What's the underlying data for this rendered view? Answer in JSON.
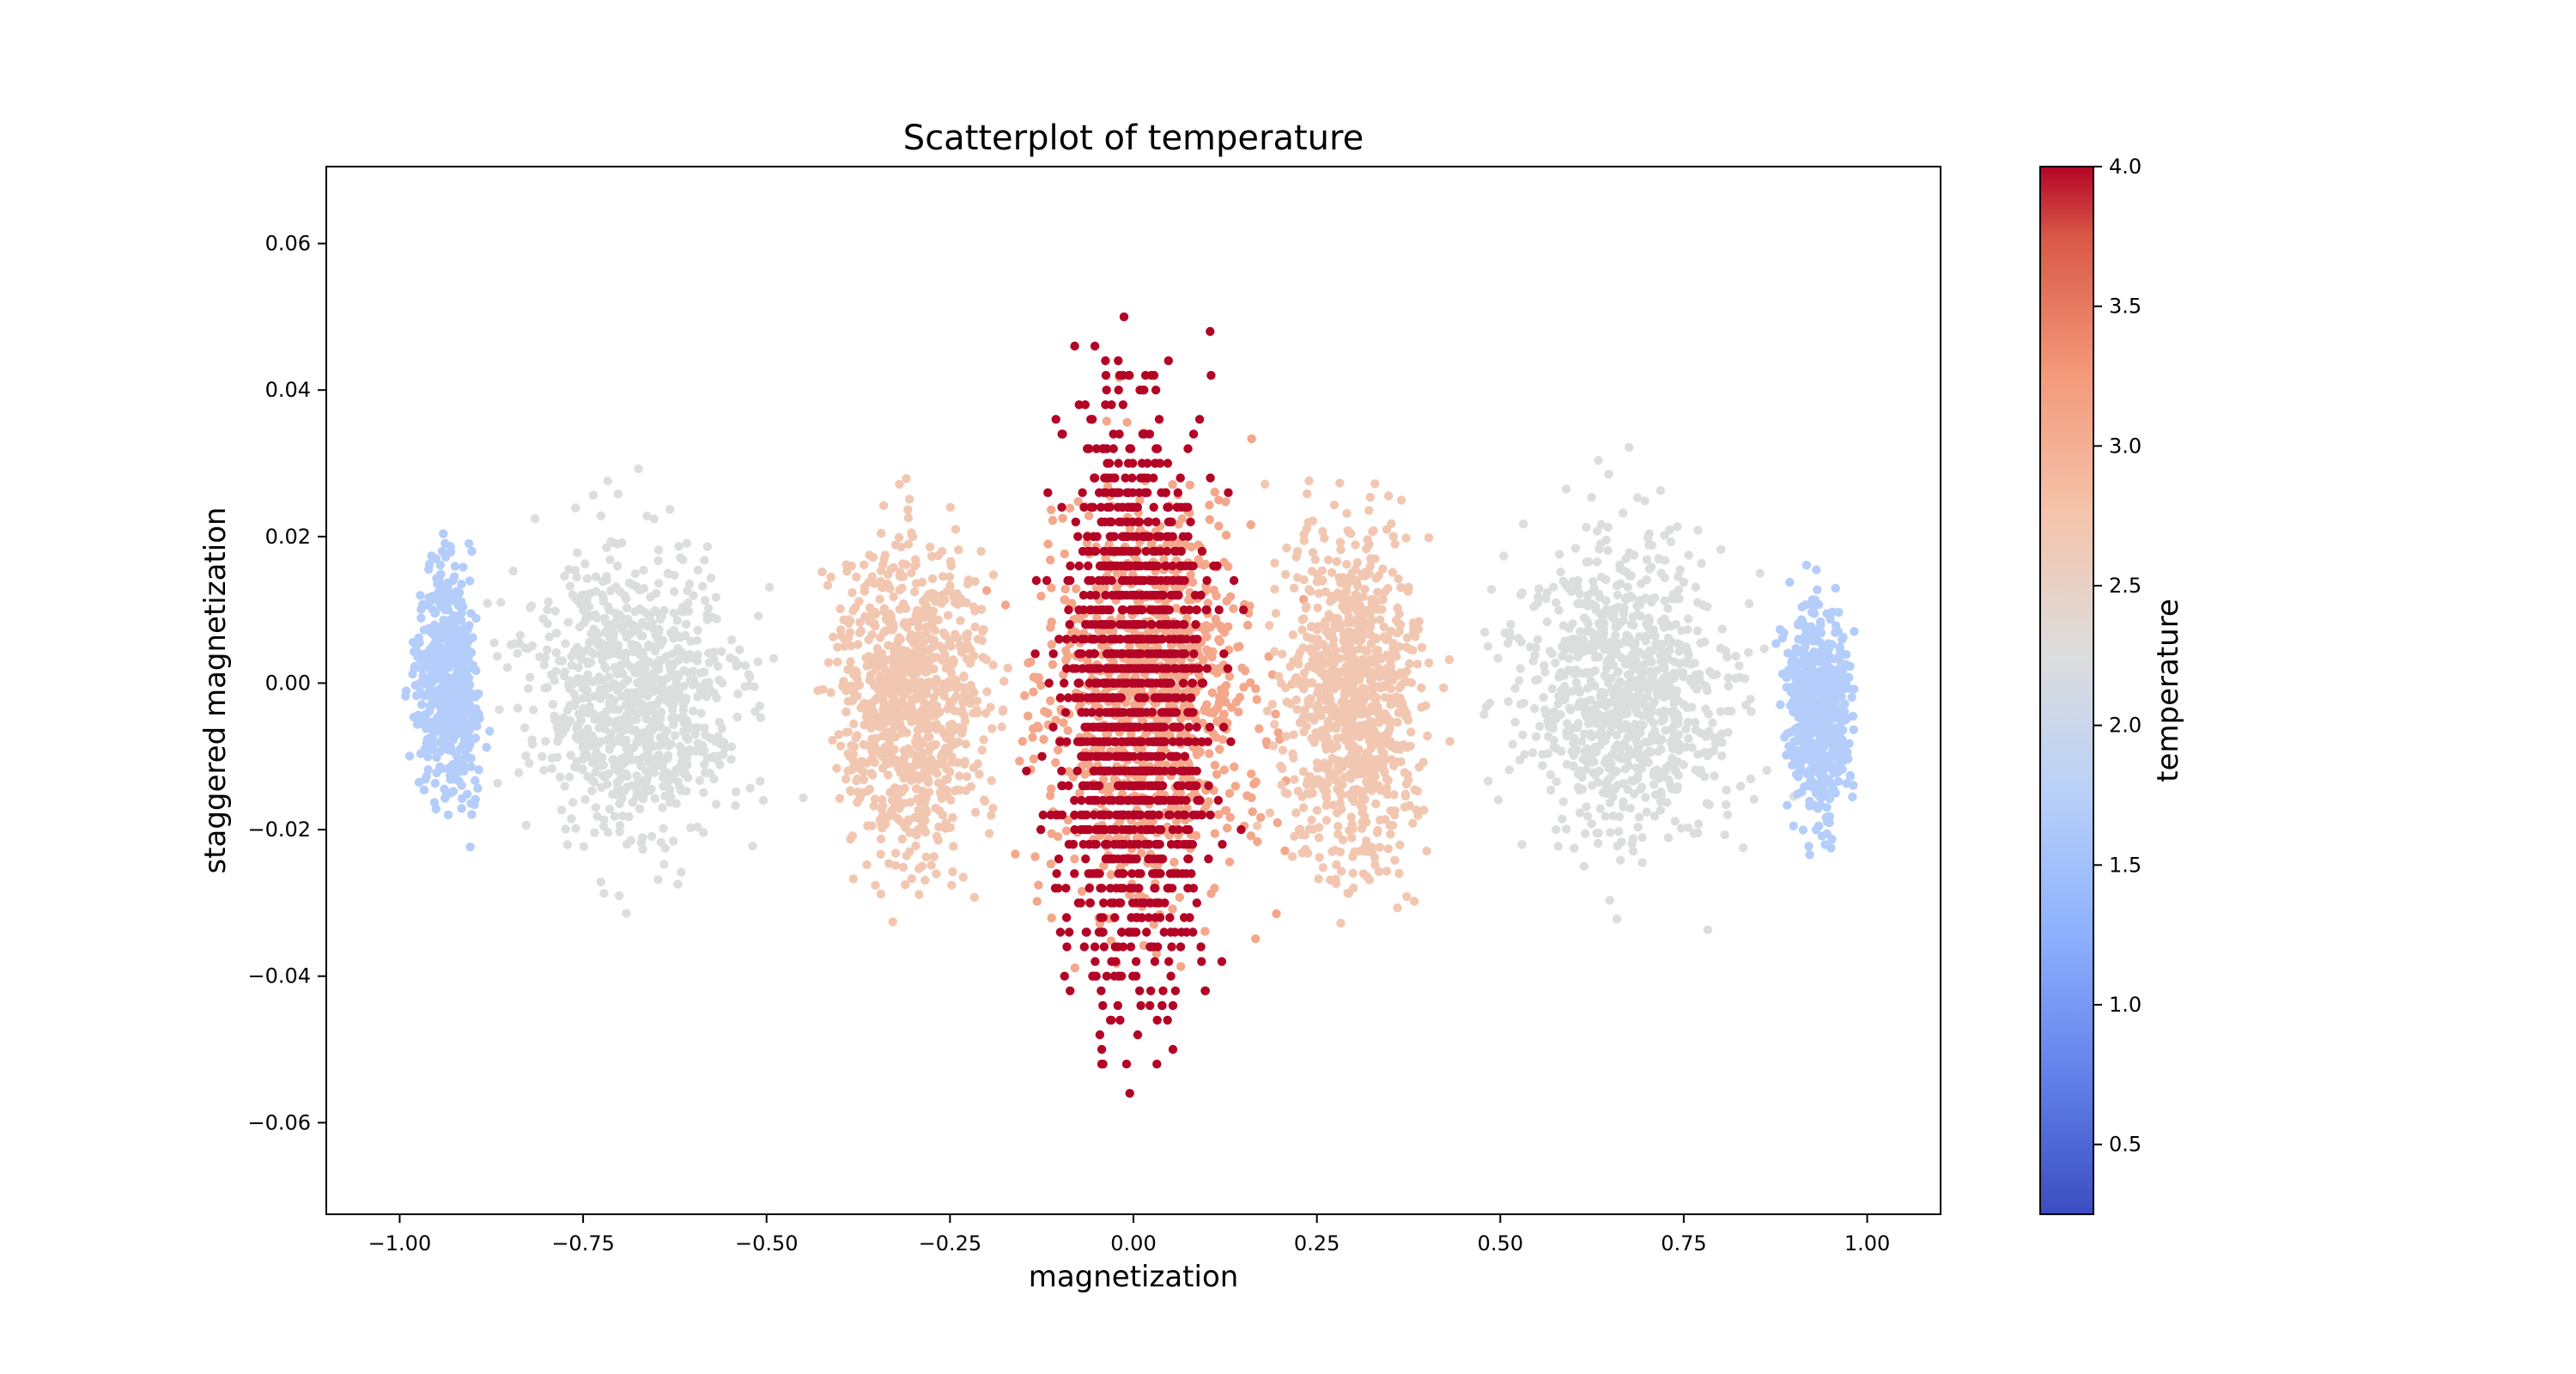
{
  "chart_data": {
    "type": "scatter",
    "title": "Scatterplot of temperature",
    "xlabel": "magnetization",
    "ylabel": "staggered magnetization",
    "xlim": [
      -1.1,
      1.1
    ],
    "ylim": [
      -0.0725,
      0.0705
    ],
    "xticks": [
      -1.0,
      -0.75,
      -0.5,
      -0.25,
      0.0,
      0.25,
      0.5,
      0.75,
      1.0
    ],
    "xtick_labels": [
      "−1.00",
      "−0.75",
      "−0.50",
      "−0.25",
      "0.00",
      "0.25",
      "0.50",
      "0.75",
      "1.00"
    ],
    "yticks": [
      -0.06,
      -0.04,
      -0.02,
      0.0,
      0.02,
      0.04,
      0.06
    ],
    "ytick_labels": [
      "−0.06",
      "−0.04",
      "−0.02",
      "0.00",
      "0.02",
      "0.04",
      "0.06"
    ],
    "grid": false,
    "colorbar": {
      "label": "temperature",
      "colormap": "coolwarm",
      "range": [
        0.25,
        4.0
      ],
      "ticks": [
        0.5,
        1.0,
        1.5,
        2.0,
        2.5,
        3.0,
        3.5,
        4.0
      ],
      "tick_labels": [
        "0.5",
        "1.0",
        "1.5",
        "2.0",
        "2.5",
        "3.0",
        "3.5",
        "4.0"
      ]
    },
    "clusters": [
      {
        "temperature": 1.7,
        "x_range": [
          -1.0,
          -0.87
        ],
        "y_range": [
          -0.024,
          0.025
        ]
      },
      {
        "temperature": 2.25,
        "x_range": [
          -0.9,
          -0.45
        ],
        "y_range": [
          -0.035,
          0.031
        ]
      },
      {
        "temperature": 2.7,
        "x_range": [
          -0.45,
          -0.15
        ],
        "y_range": [
          -0.04,
          0.035
        ]
      },
      {
        "temperature": 3.1,
        "x_range": [
          -0.2,
          0.25
        ],
        "y_range": [
          -0.048,
          0.045
        ]
      },
      {
        "temperature": 4.0,
        "x_range": [
          -0.15,
          0.15
        ],
        "y_range": [
          -0.066,
          0.064
        ]
      },
      {
        "temperature": 2.7,
        "x_range": [
          0.15,
          0.45
        ],
        "y_range": [
          -0.04,
          0.037
        ]
      },
      {
        "temperature": 2.25,
        "x_range": [
          0.45,
          0.9
        ],
        "y_range": [
          -0.036,
          0.034
        ]
      },
      {
        "temperature": 1.7,
        "x_range": [
          0.87,
          1.0
        ],
        "y_range": [
          -0.028,
          0.02
        ]
      }
    ]
  }
}
